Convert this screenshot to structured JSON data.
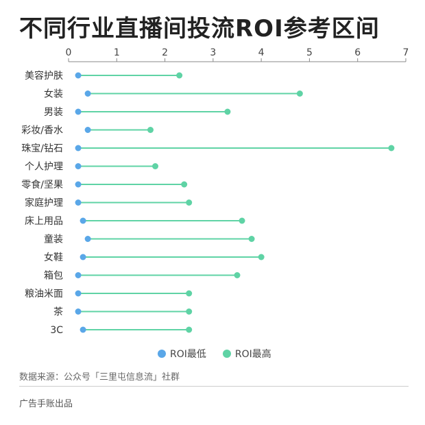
{
  "title": "不同行业直播间投流ROI参考区间",
  "source": "数据来源：公众号「三里屯信息流」社群",
  "footer": "广告手账出品",
  "colors": {
    "low": "#5aa7e8",
    "high": "#5fd3a5",
    "axis": "#888888",
    "text": "#333333"
  },
  "chart_data": {
    "type": "dumbbell",
    "orientation": "horizontal",
    "xlim": [
      0,
      7
    ],
    "xticks": [
      0,
      1,
      2,
      3,
      4,
      5,
      6,
      7
    ],
    "categories": [
      "美容护肤",
      "女装",
      "男装",
      "彩妆/香水",
      "珠宝/钻石",
      "个人护理",
      "零食/坚果",
      "家庭护理",
      "床上用品",
      "童装",
      "女鞋",
      "箱包",
      "粮油米面",
      "茶",
      "3C"
    ],
    "series": [
      {
        "name": "ROI最低",
        "values": [
          0.2,
          0.4,
          0.2,
          0.4,
          0.2,
          0.2,
          0.2,
          0.2,
          0.3,
          0.4,
          0.3,
          0.2,
          0.2,
          0.2,
          0.3
        ]
      },
      {
        "name": "ROI最高",
        "values": [
          2.3,
          4.8,
          3.3,
          1.7,
          6.7,
          1.8,
          2.4,
          2.5,
          3.6,
          3.8,
          4.0,
          3.5,
          2.5,
          2.5,
          2.5
        ]
      }
    ],
    "legend": "bottom-center",
    "grid": false
  }
}
